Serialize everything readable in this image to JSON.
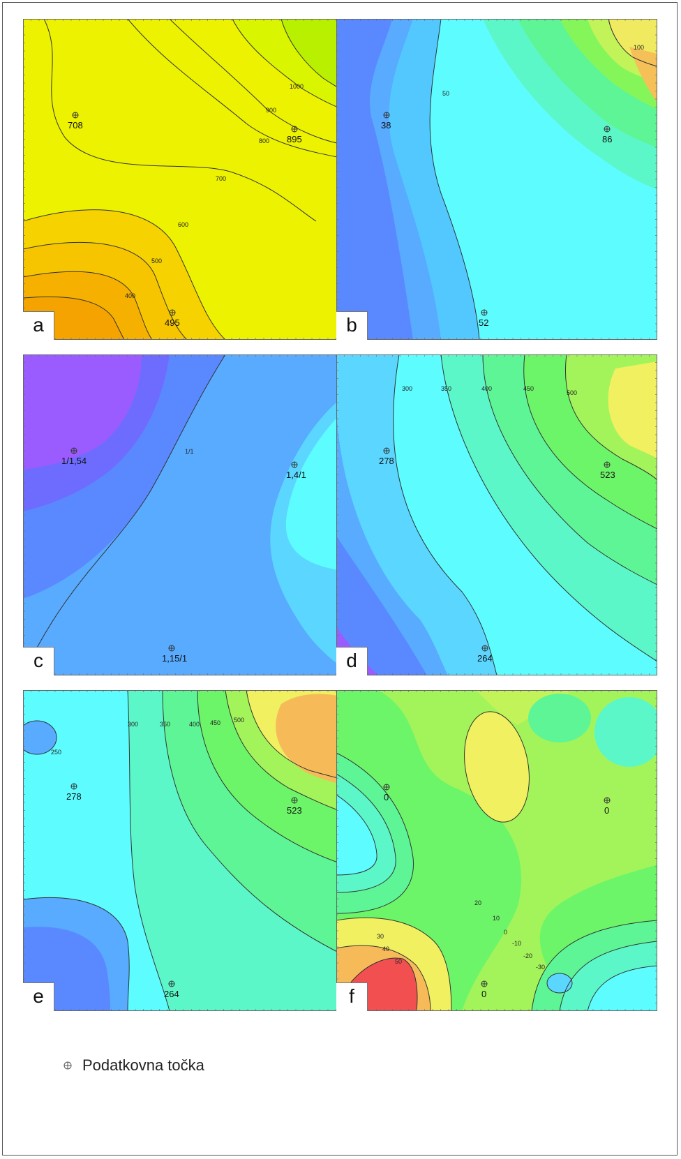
{
  "legend": {
    "icon": "crosshair-circle-icon",
    "label": "Podatkovna točka"
  },
  "panels": {
    "a": {
      "letter": "a",
      "points": [
        "708",
        "895",
        "495"
      ],
      "isolines": [
        "1000",
        "900",
        "800",
        "700",
        "600",
        "500",
        "400"
      ]
    },
    "b": {
      "letter": "b",
      "points": [
        "38",
        "86",
        "52"
      ],
      "isolines": [
        "50",
        "100"
      ]
    },
    "c": {
      "letter": "c",
      "points": [
        "1/1,54",
        "1,4/1",
        "1,15/1"
      ],
      "isolines": [
        "1/1"
      ]
    },
    "d": {
      "letter": "d",
      "points": [
        "278",
        "523",
        "264"
      ],
      "isolines": [
        "300",
        "350",
        "400",
        "450",
        "500"
      ]
    },
    "e": {
      "letter": "e",
      "points": [
        "278",
        "523",
        "264"
      ],
      "isolines": [
        "250",
        "300",
        "350",
        "400",
        "450",
        "500"
      ]
    },
    "f": {
      "letter": "f",
      "points": [
        "0",
        "0",
        "0"
      ],
      "isolines": [
        "50",
        "40",
        "30",
        "20",
        "10",
        "0",
        "-10",
        "-20",
        "-30"
      ]
    }
  },
  "colors": {
    "orange": "#f7a700",
    "yellow": "#f3f300",
    "lime": "#b6f200",
    "cyan": "#5dfcff",
    "blue": "#5a89ff",
    "violet": "#9a5cff",
    "green": "#6df56a",
    "red": "#f25050"
  }
}
